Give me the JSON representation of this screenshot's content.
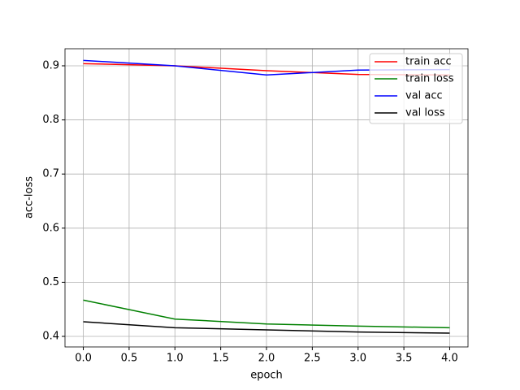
{
  "chart_data": {
    "type": "line",
    "xlabel": "epoch",
    "ylabel": "acc-loss",
    "x": [
      0,
      1,
      2,
      3,
      4
    ],
    "series": [
      {
        "name": "train acc",
        "color": "#ff0000",
        "values": [
          0.904,
          0.9,
          0.891,
          0.884,
          0.883
        ]
      },
      {
        "name": "train loss",
        "color": "#008000",
        "values": [
          0.467,
          0.432,
          0.423,
          0.419,
          0.416
        ]
      },
      {
        "name": "val acc",
        "color": "#0000ff",
        "values": [
          0.91,
          0.9,
          0.883,
          0.892,
          0.893
        ]
      },
      {
        "name": "val loss",
        "color": "#000000",
        "values": [
          0.427,
          0.416,
          0.412,
          0.408,
          0.406
        ]
      }
    ],
    "xlim": [
      -0.2,
      4.2
    ],
    "xticks": [
      {
        "value": 0,
        "label": "0.0"
      },
      0.5,
      {
        "value": 1,
        "label": "1.0"
      },
      1.5,
      {
        "value": 2,
        "label": "2.0"
      },
      2.5,
      {
        "value": 3,
        "label": "3.0"
      },
      3.5,
      {
        "value": 4,
        "label": "4.0"
      }
    ],
    "ylim": [
      0.3805,
      0.9315
    ],
    "yticks": [
      0.4,
      0.5,
      0.6,
      0.7,
      0.8,
      0.9
    ],
    "grid": true,
    "legend": "upper right"
  }
}
